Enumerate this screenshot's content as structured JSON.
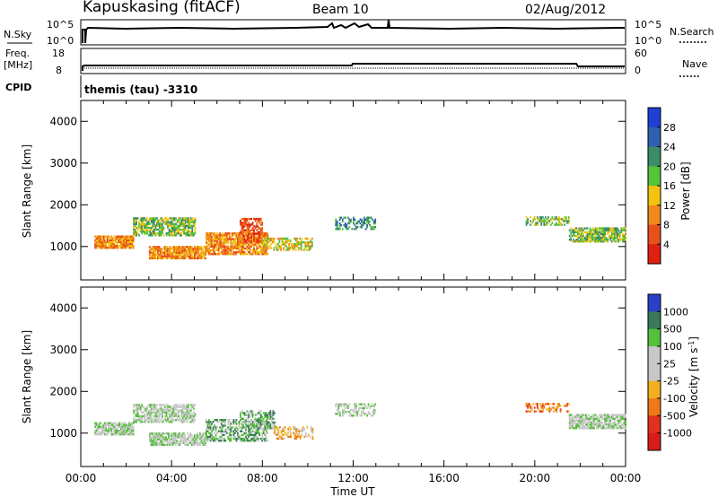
{
  "header": {
    "station": "Kapuskasing (fitACF)",
    "beam": "Beam 10",
    "date": "02/Aug/2012"
  },
  "strips": {
    "nsky_label": "N.Sky",
    "nsky_ticks": [
      "10^5",
      "10^0"
    ],
    "nsearch_label": "N.Search",
    "nsearch_ticks": [
      "10^5",
      "10^0"
    ],
    "freq_label_1": "Freq.",
    "freq_label_2": "[MHz]",
    "freq_ticks": [
      "18",
      "8"
    ],
    "nave_label": "Nave",
    "nave_ticks": [
      "60",
      "0"
    ],
    "cpid_label": "CPID",
    "cpid_text": "themis (tau) -3310"
  },
  "chart_data": [
    {
      "type": "heatmap",
      "name": "power",
      "ylabel": "Slant Range [km]",
      "xlabel": "Time UT",
      "xlim": [
        0,
        24
      ],
      "ylim": [
        200,
        4500
      ],
      "xticks": [
        "00:00",
        "04:00",
        "08:00",
        "12:00",
        "16:00",
        "20:00",
        "00:00"
      ],
      "yticks": [
        "1000",
        "2000",
        "3000",
        "4000"
      ],
      "colorbar": {
        "label": "Power [dB]",
        "ticks": [
          "4",
          "8",
          "12",
          "16",
          "20",
          "24",
          "28"
        ],
        "colors": [
          "#1f3fd6",
          "#2f5fb0",
          "#3c8c6a",
          "#54c43a",
          "#f2c40f",
          "#f0891a",
          "#e8501c",
          "#e02010"
        ]
      },
      "regions": [
        {
          "t0": 0.6,
          "t1": 2.3,
          "r0": 950,
          "r1": 1250,
          "level": 5,
          "density": 0.9
        },
        {
          "t0": 2.3,
          "t1": 5.0,
          "r0": 1250,
          "r1": 1700,
          "level": 3,
          "density": 0.7
        },
        {
          "t0": 3.0,
          "t1": 5.5,
          "r0": 700,
          "r1": 1000,
          "level": 5,
          "density": 0.85
        },
        {
          "t0": 5.5,
          "t1": 8.2,
          "r0": 800,
          "r1": 1300,
          "level": 5,
          "density": 0.8
        },
        {
          "t0": 7.0,
          "t1": 8.0,
          "r0": 1100,
          "r1": 1650,
          "level": 6,
          "density": 0.7
        },
        {
          "t0": 8.0,
          "t1": 10.2,
          "r0": 900,
          "r1": 1200,
          "level": 4,
          "density": 0.6
        },
        {
          "t0": 11.2,
          "t1": 13.0,
          "r0": 1400,
          "r1": 1700,
          "level": 2,
          "density": 0.5
        },
        {
          "t0": 19.6,
          "t1": 21.5,
          "r0": 1500,
          "r1": 1700,
          "level": 3,
          "density": 0.6
        },
        {
          "t0": 21.5,
          "t1": 24.0,
          "r0": 1100,
          "r1": 1450,
          "level": 3,
          "density": 0.8
        }
      ]
    },
    {
      "type": "heatmap",
      "name": "velocity",
      "ylabel": "Slant Range [km]",
      "xlabel": "Time UT",
      "xlim": [
        0,
        24
      ],
      "ylim": [
        200,
        4500
      ],
      "xticks": [
        "00:00",
        "04:00",
        "08:00",
        "12:00",
        "16:00",
        "20:00",
        "00:00"
      ],
      "yticks": [
        "1000",
        "2000",
        "3000",
        "4000"
      ],
      "colorbar": {
        "label": "Velocity [m s-1]",
        "ticks": [
          "1000",
          "500",
          "100",
          "25",
          "-25",
          "-100",
          "-500",
          "-1000"
        ],
        "colors": [
          "#2a40c8",
          "#3a7a58",
          "#55c03a",
          "#c8c8c8",
          "#c8c8c8",
          "#f2b020",
          "#f07818",
          "#e03020",
          "#d81c1c"
        ]
      },
      "regions": [
        {
          "t0": 0.6,
          "t1": 2.3,
          "r0": 950,
          "r1": 1250,
          "level": 3,
          "density": 0.85
        },
        {
          "t0": 2.3,
          "t1": 5.0,
          "r0": 1250,
          "r1": 1700,
          "level": 3,
          "density": 0.7
        },
        {
          "t0": 3.0,
          "t1": 5.5,
          "r0": 700,
          "r1": 1000,
          "level": 3,
          "density": 0.8
        },
        {
          "t0": 5.5,
          "t1": 8.2,
          "r0": 800,
          "r1": 1300,
          "level": 2,
          "density": 0.6
        },
        {
          "t0": 7.0,
          "t1": 8.5,
          "r0": 1100,
          "r1": 1550,
          "level": 2,
          "density": 0.5
        },
        {
          "t0": 8.5,
          "t1": 10.2,
          "r0": 850,
          "r1": 1150,
          "level": 5,
          "density": 0.4
        },
        {
          "t0": 11.2,
          "t1": 13.0,
          "r0": 1400,
          "r1": 1700,
          "level": 3,
          "density": 0.5
        },
        {
          "t0": 19.6,
          "t1": 21.5,
          "r0": 1500,
          "r1": 1700,
          "level": 6,
          "density": 0.5
        },
        {
          "t0": 21.5,
          "t1": 24.0,
          "r0": 1100,
          "r1": 1450,
          "level": 3,
          "density": 0.8
        }
      ]
    }
  ]
}
